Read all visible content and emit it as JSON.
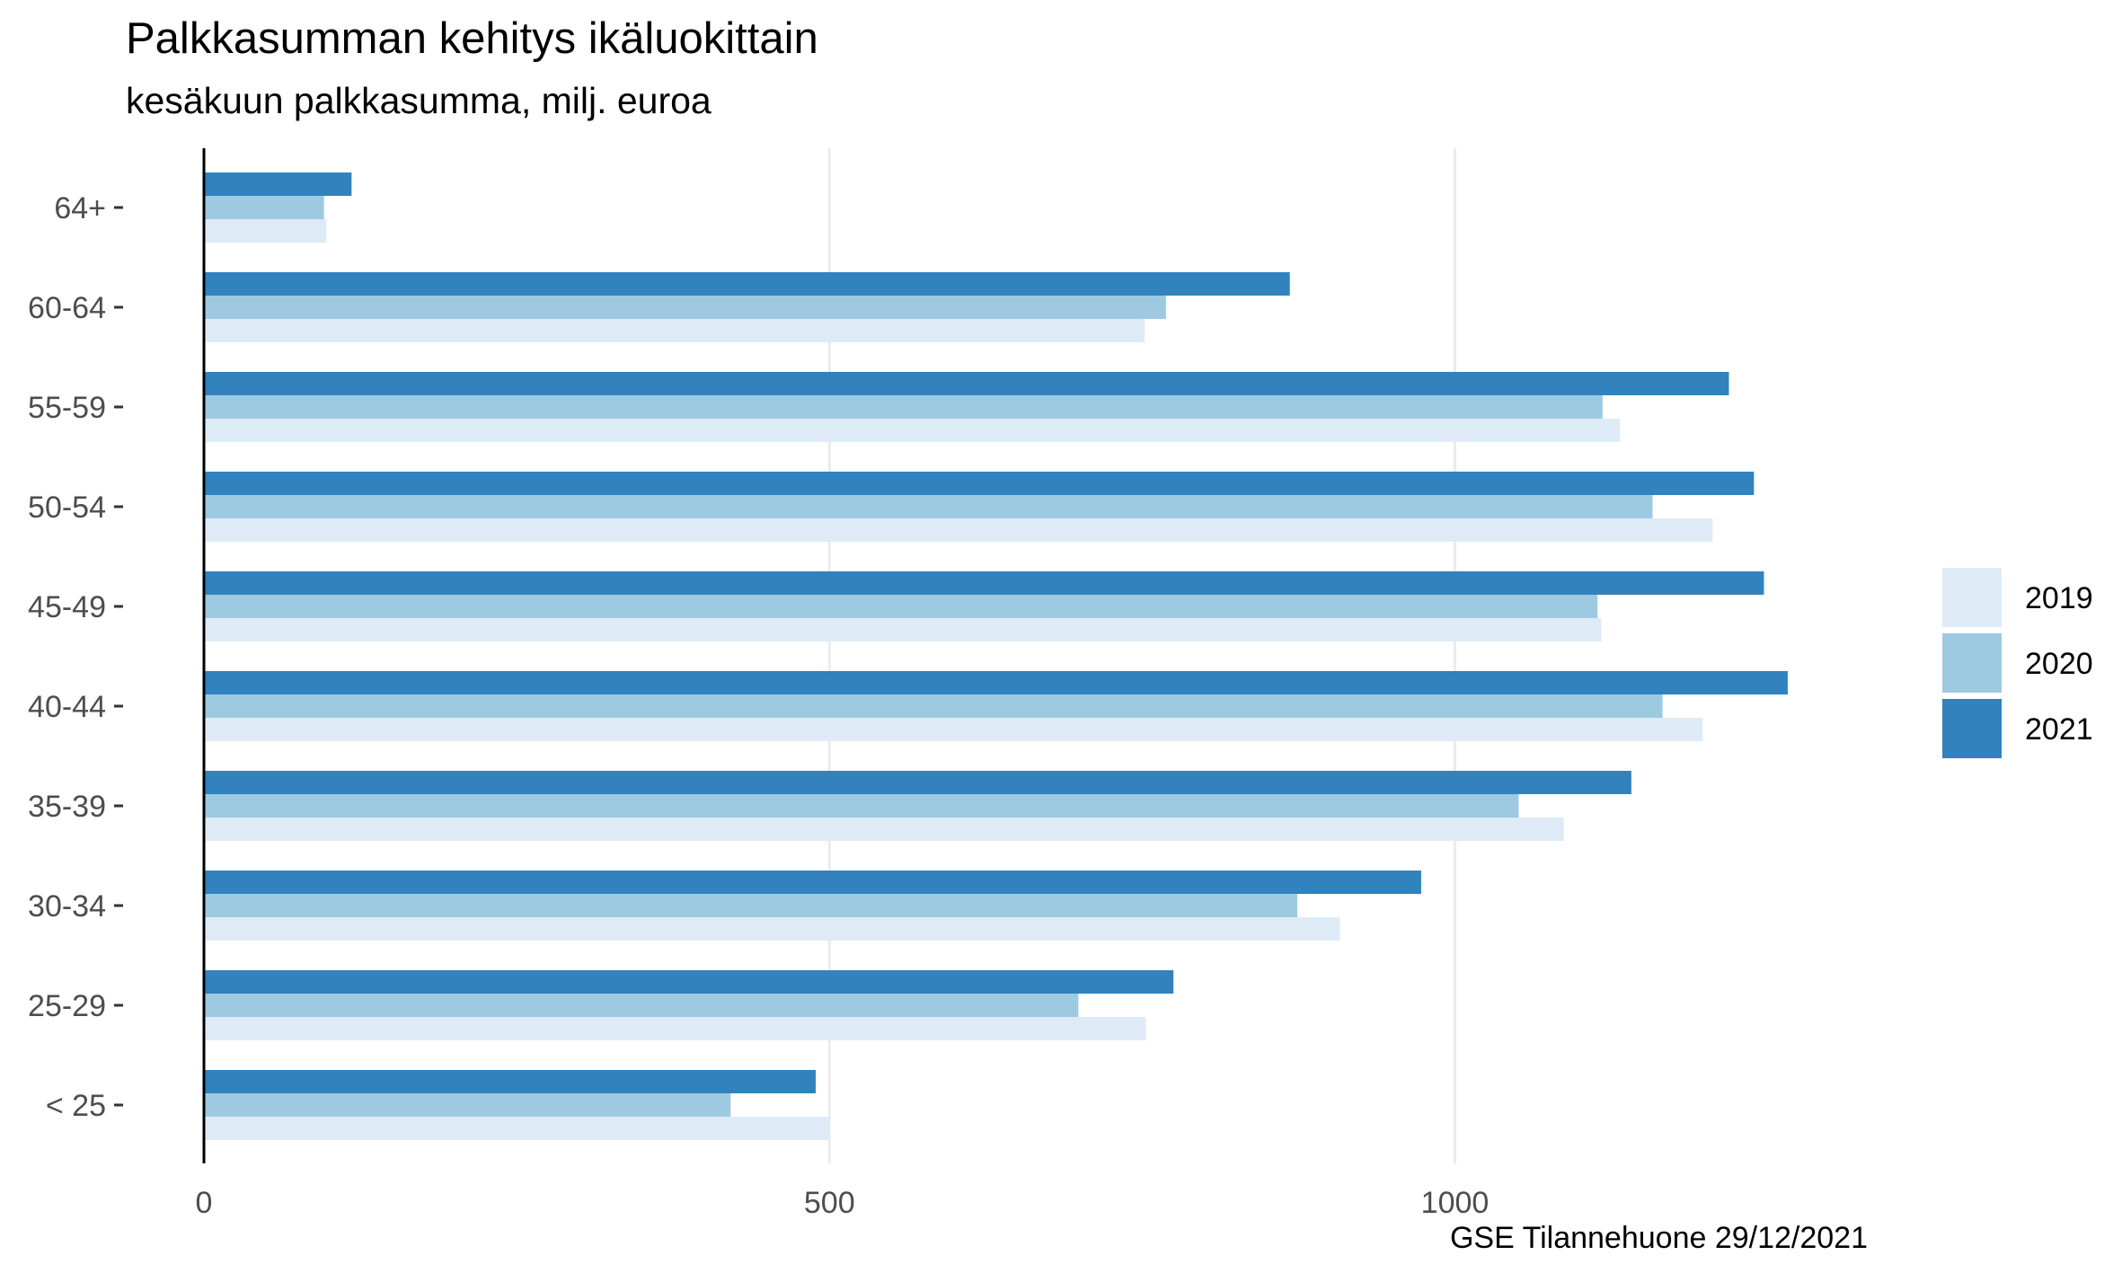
{
  "chart_data": {
    "type": "bar",
    "orientation": "horizontal",
    "title": "Palkkasumman kehitys ikäluokittain",
    "subtitle": "kesäkuun palkkasumma, milj. euroa",
    "caption": "GSE Tilannehuone 29/12/2021",
    "xlabel": "",
    "ylabel": "",
    "xlim": [
      0,
      1430
    ],
    "x_ticks": [
      0,
      500,
      1000
    ],
    "grid": true,
    "legend_position": "right",
    "categories": [
      "< 25",
      "25-29",
      "30-34",
      "35-39",
      "40-44",
      "45-49",
      "50-54",
      "55-59",
      "60-64",
      "64+"
    ],
    "series": [
      {
        "name": "2019",
        "color": "#deebf7",
        "values": [
          500,
          753,
          908,
          1087,
          1198,
          1117,
          1206,
          1132,
          752,
          98
        ]
      },
      {
        "name": "2020",
        "color": "#9ecae1",
        "values": [
          421,
          699,
          874,
          1051,
          1166,
          1114,
          1158,
          1118,
          769,
          96
        ]
      },
      {
        "name": "2021",
        "color": "#3182bd",
        "values": [
          489,
          775,
          973,
          1141,
          1266,
          1247,
          1239,
          1219,
          868,
          118
        ]
      }
    ]
  }
}
